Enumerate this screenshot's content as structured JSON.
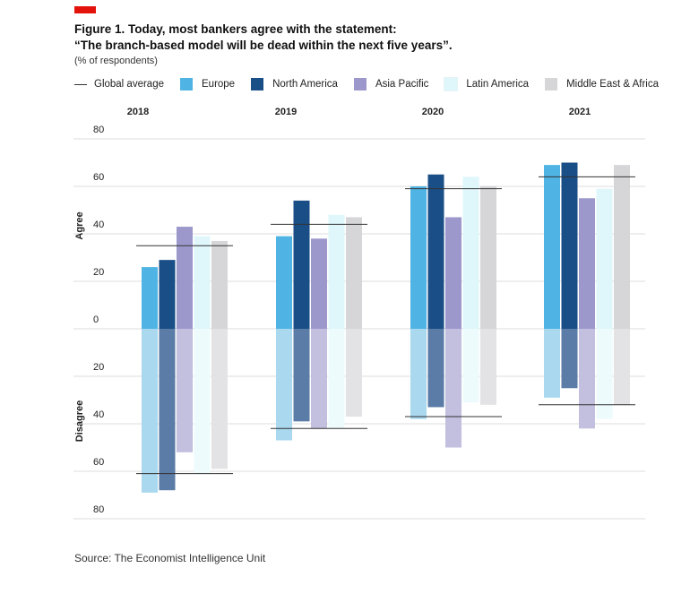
{
  "figure": {
    "title_line1": "Figure 1. Today, most bankers agree with the statement:",
    "title_line2": "“The branch-based model will be dead within the next five years”.",
    "subtitle": "(% of respondents)",
    "source": "Source: The Economist Intelligence Unit"
  },
  "legend": {
    "global_average": "Global average",
    "items": [
      {
        "label": "Europe",
        "color": "#4fb3e3"
      },
      {
        "label": "North America",
        "color": "#1a4e86"
      },
      {
        "label": "Asia Pacific",
        "color": "#9c98cc"
      },
      {
        "label": "Latin America",
        "color": "#dff7fb"
      },
      {
        "label": "Middle East & Africa",
        "color": "#d6d6d9"
      }
    ]
  },
  "chart_data": {
    "type": "bar",
    "categories": [
      "2018",
      "2019",
      "2020",
      "2021"
    ],
    "ylabel_top": "Agree",
    "ylabel_bottom": "Disagree",
    "y_ticks_agree": [
      "80",
      "60",
      "40",
      "20",
      "0"
    ],
    "y_ticks_disagree": [
      "20",
      "40",
      "60",
      "80"
    ],
    "ylim_agree": [
      0,
      80
    ],
    "ylim_disagree": [
      0,
      80
    ],
    "series": [
      {
        "name": "Europe",
        "color": "#4fb3e3",
        "disagree_color": "#a9d8ef",
        "agree": [
          26,
          39,
          60,
          69
        ],
        "disagree": [
          69,
          47,
          38,
          29
        ]
      },
      {
        "name": "North America",
        "color": "#1a4e86",
        "disagree_color": "#5a7ca6",
        "agree": [
          29,
          54,
          65,
          70
        ],
        "disagree": [
          68,
          39,
          33,
          25
        ]
      },
      {
        "name": "Asia Pacific",
        "color": "#9c98cc",
        "disagree_color": "#c2bfdf",
        "agree": [
          43,
          38,
          47,
          55
        ],
        "disagree": [
          52,
          42,
          50,
          42
        ]
      },
      {
        "name": "Latin America",
        "color": "#dff7fb",
        "disagree_color": "#eefbfd",
        "agree": [
          39,
          48,
          64,
          59
        ],
        "disagree": [
          61,
          42,
          31,
          38
        ]
      },
      {
        "name": "Middle East & Africa",
        "color": "#d6d6d9",
        "disagree_color": "#e3e3e6",
        "agree": [
          37,
          47,
          60,
          69
        ],
        "disagree": [
          59,
          37,
          32,
          32
        ]
      }
    ],
    "global_average": {
      "agree": [
        35,
        44,
        59,
        64
      ],
      "disagree": [
        61,
        42,
        37,
        32
      ]
    }
  }
}
